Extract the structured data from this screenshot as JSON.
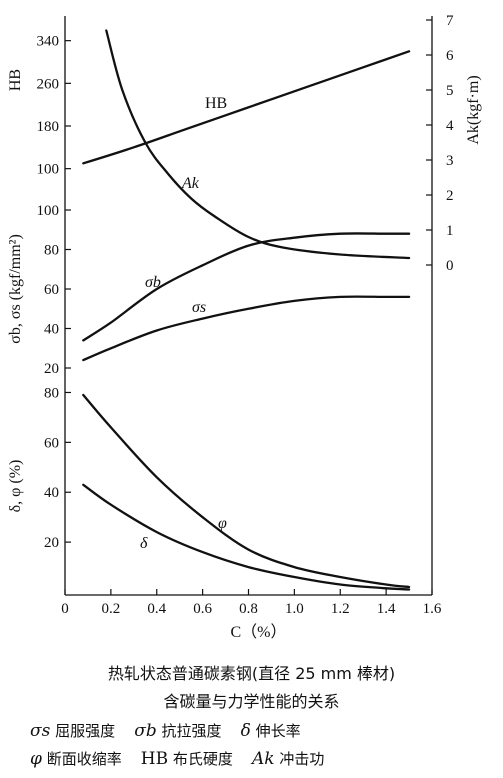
{
  "chart_data": {
    "type": "line",
    "x_axis": {
      "label": "C（%）",
      "ticks": [
        "0",
        "0.2",
        "0.4",
        "0.6",
        "0.8",
        "1.0",
        "1.2",
        "1.4",
        "1.6"
      ],
      "range": [
        0,
        1.6
      ]
    },
    "panels": [
      {
        "name": "hardness",
        "left_axis_label": "HB",
        "left_ticks": [
          100,
          180,
          260,
          340
        ],
        "left_range": [
          60,
          360
        ],
        "right_axis_label": "Ak(kgf·m)",
        "right_ticks": [
          0,
          1,
          2,
          3,
          4,
          5,
          6,
          7
        ],
        "right_range": [
          0,
          7
        ],
        "series": [
          {
            "name": "HB",
            "axis": "left",
            "x": [
              0.08,
              0.3,
              0.5,
              0.7,
              0.9,
              1.1,
              1.3,
              1.5
            ],
            "y": [
              110,
              140,
              170,
              200,
              230,
              260,
              290,
              320
            ]
          },
          {
            "name": "Ak",
            "axis": "right",
            "x": [
              0.18,
              0.25,
              0.35,
              0.45,
              0.55,
              0.65,
              0.8,
              0.95,
              1.2,
              1.5
            ],
            "y": [
              6.7,
              5.0,
              3.5,
              2.6,
              1.9,
              1.4,
              0.8,
              0.5,
              0.3,
              0.2
            ]
          }
        ]
      },
      {
        "name": "strength",
        "left_axis_label": "σb, σs (kgf/mm²)",
        "left_ticks": [
          20,
          40,
          60,
          80,
          100
        ],
        "left_range": [
          20,
          100
        ],
        "series": [
          {
            "name": "σb",
            "axis": "left",
            "x": [
              0.08,
              0.2,
              0.4,
              0.6,
              0.8,
              1.0,
              1.2,
              1.4,
              1.5
            ],
            "y": [
              34,
              43,
              60,
              72,
              82,
              86,
              88,
              88,
              88
            ]
          },
          {
            "name": "σs",
            "axis": "left",
            "x": [
              0.08,
              0.2,
              0.4,
              0.6,
              0.8,
              1.0,
              1.2,
              1.4,
              1.5
            ],
            "y": [
              24,
              30,
              39,
              45,
              50,
              54,
              56,
              56,
              56
            ]
          }
        ]
      },
      {
        "name": "ductility",
        "left_axis_label": "δ, φ (%)",
        "left_ticks": [
          20,
          40,
          60,
          80
        ],
        "left_range": [
          0,
          85
        ],
        "series": [
          {
            "name": "φ",
            "axis": "left",
            "x": [
              0.08,
              0.2,
              0.4,
              0.6,
              0.8,
              1.0,
              1.2,
              1.4,
              1.5
            ],
            "y": [
              79,
              66,
              46,
              30,
              17,
              10,
              6,
              3,
              2
            ]
          },
          {
            "name": "δ",
            "axis": "left",
            "x": [
              0.08,
              0.2,
              0.4,
              0.6,
              0.8,
              1.0,
              1.2,
              1.4,
              1.5
            ],
            "y": [
              43,
              35,
              24,
              16,
              10,
              6,
              3,
              1.5,
              1
            ]
          }
        ]
      }
    ]
  },
  "caption": {
    "line1": "热轧状态普通碳素钢(直径 25 mm 棒材)",
    "line2": "含碳量与力学性能的关系"
  },
  "legend": {
    "row1": [
      {
        "symbol": "σs",
        "text": "屈服强度"
      },
      {
        "symbol": "σb",
        "text": "抗拉强度"
      },
      {
        "symbol": "δ",
        "text": "伸长率"
      }
    ],
    "row2": [
      {
        "symbol": "φ",
        "text": "断面收缩率"
      },
      {
        "symbol": "HB",
        "text": "布氏硬度"
      },
      {
        "symbol": "Ak",
        "text": "冲击功"
      }
    ]
  }
}
